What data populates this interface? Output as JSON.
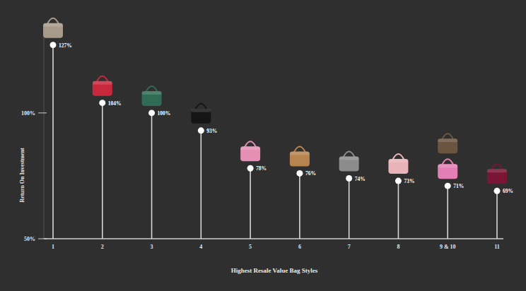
{
  "chart_data": {
    "type": "lollipop",
    "categories": [
      "1",
      "2",
      "3",
      "4",
      "5",
      "6",
      "7",
      "8",
      "9 & 10",
      "11"
    ],
    "values": [
      127,
      104,
      100,
      93,
      78,
      76,
      74,
      73,
      71,
      69
    ],
    "value_labels": [
      "127%",
      "104%",
      "100%",
      "93%",
      "78%",
      "76%",
      "74%",
      "73%",
      "71%",
      "69%"
    ],
    "colors": [
      "#a89a8a",
      "#c8283c",
      "#2f6b55",
      "#151515",
      "#e58fb4",
      "#b7844f",
      "#8c8c8c",
      "#e8b4b8",
      "#e47fb5",
      "#7a1535"
    ],
    "x_label": "Highest Resale Value Bag Styles",
    "y_label": "Return On Investment",
    "ylim": [
      50,
      130
    ],
    "yticks": [
      {
        "value": 50,
        "label": "50%"
      },
      {
        "value": 100,
        "label": "100%"
      }
    ],
    "data_labels": true,
    "grid": false
  }
}
